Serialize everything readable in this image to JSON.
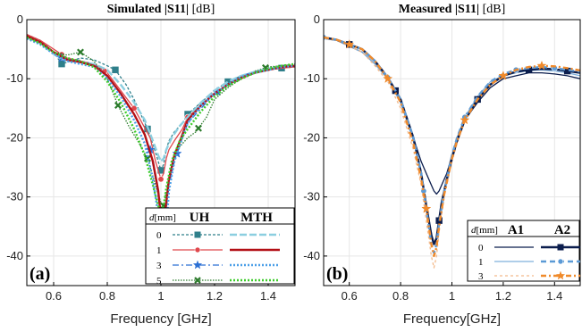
{
  "chart_data": [
    {
      "type": "line",
      "title_main": "Simulated |S11|",
      "title_unit": " [dB]",
      "xlabel": "Frequency [GHz]",
      "ylabel": "",
      "xlim": [
        0.5,
        1.5
      ],
      "ylim": [
        -45,
        0
      ],
      "xticks": [
        0.6,
        0.8,
        1.0,
        1.2,
        1.4
      ],
      "xtick_labels": [
        "0.6",
        "0.8",
        "1",
        "1.2",
        "1.4"
      ],
      "yticks": [
        0,
        -10,
        -20,
        -30,
        -40
      ],
      "ytick_labels": [
        "0",
        "-10",
        "-20",
        "-30",
        "-40"
      ],
      "grid": true,
      "panel_label": "(a)",
      "legend": {
        "placement": "bottom-right",
        "param_label": "d",
        "param_unit": "[mm]",
        "col1": "UH",
        "col2": "MTH",
        "rows": [
          "0",
          "1",
          "3",
          "5"
        ]
      },
      "series": [
        {
          "group": "UH",
          "d": "0",
          "color": "#2f7f8a",
          "dash": "3,2",
          "marker": "square",
          "x": [
            0.5,
            0.55,
            0.6,
            0.63,
            0.7,
            0.75,
            0.8,
            0.83,
            0.87,
            0.9,
            0.93,
            0.95,
            0.97,
            0.99,
            1.0,
            1.01,
            1.02,
            1.03,
            1.05,
            1.08,
            1.1,
            1.15,
            1.2,
            1.25,
            1.3,
            1.35,
            1.4,
            1.45,
            1.5
          ],
          "y": [
            -2.5,
            -3.5,
            -5.5,
            -7.5,
            -6.5,
            -6.8,
            -7.8,
            -8.5,
            -11,
            -13.5,
            -16.5,
            -18.5,
            -21,
            -24,
            -25.5,
            -24.5,
            -22,
            -20.5,
            -19,
            -17.5,
            -16,
            -14,
            -12,
            -10.5,
            -9.5,
            -9,
            -8.5,
            -8.2,
            -8
          ],
          "markers_x": [
            0.63,
            0.83,
            0.95,
            1.0,
            1.1,
            1.25,
            1.45
          ]
        },
        {
          "group": "UH",
          "d": "1",
          "color": "#e0474c",
          "dash": "",
          "marker": "circle",
          "x": [
            0.5,
            0.55,
            0.6,
            0.65,
            0.7,
            0.75,
            0.8,
            0.85,
            0.9,
            0.93,
            0.96,
            0.98,
            1.0,
            1.01,
            1.02,
            1.03,
            1.05,
            1.08,
            1.1,
            1.15,
            1.2,
            1.25,
            1.3,
            1.35,
            1.4,
            1.45,
            1.5
          ],
          "y": [
            -2.5,
            -3.5,
            -5,
            -6.5,
            -7,
            -7.5,
            -9,
            -12,
            -15,
            -17.5,
            -20,
            -24,
            -27,
            -26,
            -23.5,
            -22,
            -20.5,
            -18.5,
            -16.5,
            -14.5,
            -12.5,
            -11,
            -10,
            -9,
            -8.5,
            -8.2,
            -8
          ],
          "markers_x": [
            0.63,
            0.79,
            0.9,
            1.0,
            1.1
          ]
        },
        {
          "group": "UH",
          "d": "3",
          "color": "#2b6fd4",
          "dash": "7,3,2,3",
          "marker": "star",
          "x": [
            0.5,
            0.55,
            0.6,
            0.63,
            0.7,
            0.75,
            0.8,
            0.85,
            0.9,
            0.93,
            0.96,
            0.98,
            1.0,
            1.01,
            1.02,
            1.03,
            1.05,
            1.08,
            1.1,
            1.15,
            1.2,
            1.25,
            1.3,
            1.35,
            1.4,
            1.45,
            1.5
          ],
          "y": [
            -3,
            -4,
            -5.5,
            -6.5,
            -7,
            -7.5,
            -9.5,
            -12.5,
            -16,
            -18.5,
            -22,
            -27,
            -33,
            -35.5,
            -32,
            -28,
            -24,
            -20,
            -17.5,
            -15,
            -12.5,
            -11,
            -9.5,
            -8.8,
            -8.2,
            -8,
            -7.8
          ],
          "markers_x": [
            0.63,
            0.96,
            1.01,
            1.06,
            1.21
          ]
        },
        {
          "group": "UH",
          "d": "5",
          "color": "#2a7a2a",
          "dash": "1.5,1.5",
          "marker": "cross",
          "x": [
            0.5,
            0.55,
            0.6,
            0.65,
            0.7,
            0.75,
            0.8,
            0.84,
            0.88,
            0.92,
            0.95,
            0.98,
            1.0,
            1.01,
            1.02,
            1.04,
            1.06,
            1.1,
            1.13,
            1.17,
            1.2,
            1.25,
            1.3,
            1.35,
            1.4,
            1.45,
            1.5
          ],
          "y": [
            -3,
            -4,
            -5.5,
            -6,
            -5.5,
            -7,
            -10,
            -14.5,
            -18,
            -21,
            -23.5,
            -28,
            -31,
            -31.5,
            -29,
            -25,
            -22,
            -20,
            -19,
            -16.5,
            -13.5,
            -11.5,
            -10,
            -8.7,
            -8,
            -7.8,
            -7.5
          ],
          "markers_x": [
            0.7,
            0.84,
            0.95,
            1.01,
            1.14,
            1.39
          ]
        },
        {
          "group": "MTH",
          "d": "0",
          "color": "#8ccfe0",
          "dash": "8,3",
          "marker": "none",
          "x": [
            0.5,
            0.55,
            0.6,
            0.65,
            0.7,
            0.75,
            0.8,
            0.85,
            0.9,
            0.94,
            0.97,
            0.99,
            1.0,
            1.01,
            1.02,
            1.04,
            1.07,
            1.1,
            1.15,
            1.2,
            1.25,
            1.3,
            1.35,
            1.4,
            1.45,
            1.5
          ],
          "y": [
            -3,
            -4,
            -5.8,
            -7,
            -7.2,
            -7.5,
            -8.5,
            -11,
            -14,
            -17,
            -20.5,
            -23,
            -24,
            -23.5,
            -22,
            -20,
            -18,
            -16.5,
            -14,
            -12,
            -10.5,
            -9.5,
            -8.8,
            -8.3,
            -8,
            -7.8
          ],
          "markers_x": []
        },
        {
          "group": "MTH",
          "d": "1",
          "color": "#b30f15",
          "dash": "",
          "marker": "none",
          "x": [
            0.5,
            0.55,
            0.6,
            0.65,
            0.7,
            0.75,
            0.8,
            0.85,
            0.9,
            0.94,
            0.97,
            0.99,
            1.0,
            1.01,
            1.02,
            1.03,
            1.05,
            1.08,
            1.1,
            1.15,
            1.2,
            1.25,
            1.3,
            1.35,
            1.4,
            1.45,
            1.5
          ],
          "y": [
            -2.8,
            -3.8,
            -5.5,
            -6.8,
            -7.2,
            -7.8,
            -9.5,
            -12.5,
            -16,
            -19.5,
            -24,
            -29,
            -33.5,
            -34.5,
            -31,
            -27,
            -23,
            -19.5,
            -17,
            -14.5,
            -12.5,
            -11,
            -9.8,
            -9,
            -8.5,
            -8,
            -7.8
          ],
          "markers_x": []
        },
        {
          "group": "MTH",
          "d": "3",
          "color": "#4c9fe8",
          "dash": "2,2",
          "marker": "none",
          "x": [
            0.5,
            0.55,
            0.6,
            0.65,
            0.7,
            0.75,
            0.8,
            0.85,
            0.9,
            0.94,
            0.97,
            0.99,
            1.0,
            1.01,
            1.02,
            1.03,
            1.05,
            1.08,
            1.1,
            1.15,
            1.2,
            1.25,
            1.3,
            1.35,
            1.4,
            1.45,
            1.5
          ],
          "y": [
            -3.2,
            -4.2,
            -5.8,
            -7,
            -7.5,
            -8,
            -10,
            -13,
            -17,
            -21,
            -27,
            -33,
            -38.5,
            -40,
            -35,
            -29,
            -24,
            -20,
            -17.5,
            -14.5,
            -12.5,
            -11,
            -9.7,
            -9,
            -8.5,
            -8,
            -7.8
          ],
          "markers_x": []
        },
        {
          "group": "MTH",
          "d": "5",
          "color": "#3dcc2a",
          "dash": "2,2",
          "marker": "none",
          "x": [
            0.5,
            0.55,
            0.6,
            0.65,
            0.7,
            0.75,
            0.8,
            0.85,
            0.9,
            0.94,
            0.97,
            0.99,
            1.0,
            1.01,
            1.02,
            1.04,
            1.07,
            1.1,
            1.15,
            1.2,
            1.25,
            1.3,
            1.35,
            1.4,
            1.45,
            1.5
          ],
          "y": [
            -3,
            -4,
            -5.5,
            -6.5,
            -7,
            -8,
            -10.5,
            -14,
            -18.5,
            -23,
            -28,
            -31.5,
            -32.5,
            -31.5,
            -28.5,
            -24,
            -20.5,
            -18.5,
            -15.5,
            -13,
            -11.2,
            -10,
            -9,
            -8.3,
            -7.8,
            -7.5
          ],
          "markers_x": []
        }
      ]
    },
    {
      "type": "line",
      "title_main": "Measured |S11|",
      "title_unit": " [dB]",
      "xlabel": "Frequency[GHz]",
      "ylabel": "",
      "xlim": [
        0.5,
        1.5
      ],
      "ylim": [
        -45,
        0
      ],
      "xticks": [
        0.6,
        0.8,
        1.0,
        1.2,
        1.4
      ],
      "xtick_labels": [
        "0.6",
        "0.8",
        "1",
        "1.2",
        "1.4"
      ],
      "yticks": [
        0,
        -10,
        -20,
        -30,
        -40
      ],
      "ytick_labels": [
        "0",
        "-10",
        "-20",
        "-30",
        "-40"
      ],
      "grid": true,
      "panel_label": "(b)",
      "legend": {
        "placement": "bottom-right",
        "param_label": "d",
        "param_unit": "[mm]",
        "col1": "A1",
        "col2": "A2",
        "rows": [
          "0",
          "1",
          "3"
        ]
      },
      "series": [
        {
          "group": "A1",
          "d": "0",
          "color": "#0b1d4d",
          "dash": "",
          "marker": "none",
          "x": [
            0.5,
            0.55,
            0.6,
            0.65,
            0.7,
            0.75,
            0.8,
            0.85,
            0.88,
            0.9,
            0.92,
            0.93,
            0.94,
            0.95,
            0.96,
            0.98,
            1.0,
            1.02,
            1.05,
            1.1,
            1.15,
            1.2,
            1.25,
            1.3,
            1.35,
            1.4,
            1.45,
            1.5
          ],
          "y": [
            -3.2,
            -3.5,
            -4.5,
            -5.5,
            -7.5,
            -10,
            -14,
            -20,
            -24,
            -26,
            -28,
            -29,
            -29.5,
            -29,
            -28,
            -26,
            -23,
            -20,
            -17,
            -14,
            -11.5,
            -10,
            -9.5,
            -9,
            -9,
            -9.2,
            -9.5,
            -10
          ],
          "markers_x": []
        },
        {
          "group": "A1",
          "d": "1",
          "color": "#7fb0dc",
          "dash": "",
          "marker": "none",
          "x": [
            0.5,
            0.55,
            0.6,
            0.65,
            0.7,
            0.75,
            0.8,
            0.85,
            0.88,
            0.9,
            0.92,
            0.93,
            0.94,
            0.95,
            0.97,
            1.0,
            1.02,
            1.05,
            1.1,
            1.15,
            1.2,
            1.25,
            1.3,
            1.35,
            1.4,
            1.45,
            1.5
          ],
          "y": [
            -3.2,
            -3.5,
            -4.5,
            -5.5,
            -7.5,
            -10,
            -14,
            -20.5,
            -26,
            -31,
            -36,
            -38,
            -37,
            -34,
            -29,
            -23,
            -20,
            -16.5,
            -13,
            -10.5,
            -9.5,
            -9,
            -8.6,
            -8.5,
            -8.7,
            -9,
            -9.5
          ],
          "markers_x": []
        },
        {
          "group": "A1",
          "d": "3",
          "color": "#f3b98a",
          "dash": "3,3",
          "marker": "none",
          "x": [
            0.5,
            0.55,
            0.6,
            0.65,
            0.7,
            0.75,
            0.8,
            0.85,
            0.88,
            0.9,
            0.92,
            0.93,
            0.94,
            0.95,
            0.97,
            1.0,
            1.02,
            1.05,
            1.1,
            1.15,
            1.2,
            1.25,
            1.3,
            1.35,
            1.4,
            1.45,
            1.5
          ],
          "y": [
            -3.2,
            -3.5,
            -4.5,
            -5.5,
            -7.8,
            -10.5,
            -15,
            -22,
            -28,
            -34,
            -40,
            -42,
            -40,
            -36,
            -30,
            -24,
            -21,
            -17,
            -13.5,
            -11,
            -9.5,
            -8.8,
            -8.4,
            -8.2,
            -8.3,
            -8.6,
            -9
          ],
          "markers_x": []
        },
        {
          "group": "A2",
          "d": "0",
          "color": "#0b1d4d",
          "dash": "",
          "marker": "square",
          "x": [
            0.5,
            0.55,
            0.6,
            0.65,
            0.7,
            0.75,
            0.8,
            0.85,
            0.88,
            0.9,
            0.92,
            0.93,
            0.94,
            0.95,
            0.96,
            0.98,
            1.0,
            1.02,
            1.05,
            1.1,
            1.15,
            1.2,
            1.25,
            1.3,
            1.35,
            1.4,
            1.45,
            1.5
          ],
          "y": [
            -3,
            -3.4,
            -4.2,
            -5,
            -7,
            -9.8,
            -13.5,
            -20,
            -26,
            -31.5,
            -36.5,
            -38,
            -37,
            -34,
            -31,
            -27,
            -23.5,
            -20.5,
            -17,
            -13.5,
            -11,
            -9.5,
            -8.8,
            -8.5,
            -8.3,
            -8.4,
            -8.7,
            -9
          ],
          "markers_x": [
            0.6,
            0.78,
            0.95,
            1.1,
            1.3,
            1.45
          ]
        },
        {
          "group": "A2",
          "d": "1",
          "color": "#5b9ad6",
          "dash": "6,4",
          "marker": "circle",
          "x": [
            0.5,
            0.55,
            0.6,
            0.65,
            0.7,
            0.75,
            0.8,
            0.85,
            0.88,
            0.9,
            0.92,
            0.93,
            0.94,
            0.95,
            0.97,
            1.0,
            1.02,
            1.05,
            1.1,
            1.15,
            1.2,
            1.25,
            1.3,
            1.35,
            1.4,
            1.45,
            1.5
          ],
          "y": [
            -3,
            -3.4,
            -4.2,
            -5,
            -7,
            -9.8,
            -13.5,
            -20,
            -26,
            -32,
            -38,
            -39.5,
            -38,
            -34.5,
            -29,
            -23,
            -20,
            -16.5,
            -13,
            -10.5,
            -9.2,
            -8.5,
            -8.2,
            -8,
            -8.2,
            -8.5,
            -8.8
          ],
          "markers_x": [
            0.5,
            0.75,
            0.89,
            1.05,
            1.25,
            1.4
          ]
        },
        {
          "group": "A2",
          "d": "3",
          "color": "#f08a2b",
          "dash": "6,3,2,3",
          "marker": "star",
          "x": [
            0.5,
            0.55,
            0.6,
            0.65,
            0.7,
            0.75,
            0.8,
            0.85,
            0.88,
            0.9,
            0.92,
            0.93,
            0.94,
            0.95,
            0.97,
            1.0,
            1.02,
            1.05,
            1.1,
            1.15,
            1.2,
            1.25,
            1.3,
            1.35,
            1.4,
            1.45,
            1.5
          ],
          "y": [
            -3,
            -3.4,
            -4.2,
            -5,
            -7,
            -10,
            -14,
            -21,
            -27,
            -32,
            -38,
            -40,
            -38.5,
            -35,
            -29.5,
            -23.5,
            -20.5,
            -17,
            -13.5,
            -11,
            -9.5,
            -8.5,
            -8,
            -7.8,
            -7.9,
            -8.2,
            -8.6
          ],
          "markers_x": [
            0.6,
            0.75,
            0.9,
            1.05,
            1.2,
            1.35
          ]
        }
      ]
    }
  ]
}
